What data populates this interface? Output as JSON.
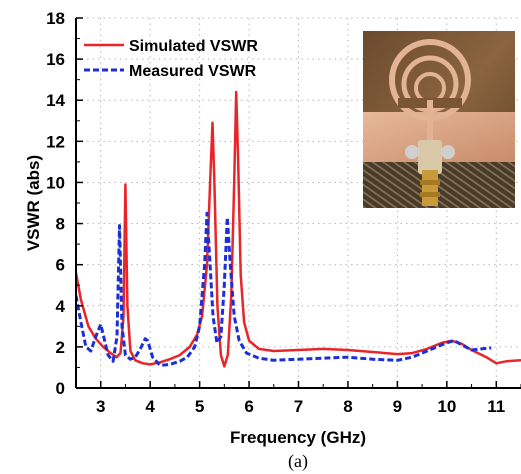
{
  "caption": "(a)",
  "chart_data": {
    "type": "line",
    "xlabel": "Frequency (GHz)",
    "ylabel": "VSWR (abs)",
    "xlim": [
      2.5,
      11.5
    ],
    "ylim": [
      0,
      18
    ],
    "x_ticks": [
      "3",
      "4",
      "5",
      "6",
      "7",
      "8",
      "9",
      "10",
      "11"
    ],
    "y_ticks": [
      "0",
      "2",
      "4",
      "6",
      "8",
      "10",
      "12",
      "14",
      "16",
      "18"
    ],
    "grid": "dotted",
    "legend_position": "top-left",
    "inset": "photograph of fabricated antenna prototype, top-right",
    "series": [
      {
        "name": "Simulated VSWR",
        "color": "#e8262a",
        "style": "solid",
        "points": [
          [
            2.5,
            5.6
          ],
          [
            2.6,
            4.3
          ],
          [
            2.75,
            3.0
          ],
          [
            2.9,
            2.4
          ],
          [
            3.05,
            2.0
          ],
          [
            3.2,
            1.7
          ],
          [
            3.32,
            1.5
          ],
          [
            3.4,
            1.7
          ],
          [
            3.46,
            3.5
          ],
          [
            3.5,
            9.9
          ],
          [
            3.54,
            4.0
          ],
          [
            3.6,
            1.8
          ],
          [
            3.7,
            1.35
          ],
          [
            3.85,
            1.2
          ],
          [
            4.0,
            1.15
          ],
          [
            4.2,
            1.25
          ],
          [
            4.4,
            1.4
          ],
          [
            4.6,
            1.6
          ],
          [
            4.8,
            2.0
          ],
          [
            4.95,
            2.6
          ],
          [
            5.05,
            3.5
          ],
          [
            5.15,
            6.0
          ],
          [
            5.22,
            10.5
          ],
          [
            5.26,
            12.9
          ],
          [
            5.3,
            10.0
          ],
          [
            5.36,
            4.0
          ],
          [
            5.43,
            1.6
          ],
          [
            5.5,
            1.05
          ],
          [
            5.57,
            1.6
          ],
          [
            5.64,
            4.5
          ],
          [
            5.7,
            10.0
          ],
          [
            5.74,
            14.4
          ],
          [
            5.78,
            11.0
          ],
          [
            5.83,
            5.5
          ],
          [
            5.9,
            3.2
          ],
          [
            6.0,
            2.3
          ],
          [
            6.2,
            1.9
          ],
          [
            6.5,
            1.8
          ],
          [
            7.0,
            1.85
          ],
          [
            7.5,
            1.9
          ],
          [
            8.0,
            1.85
          ],
          [
            8.5,
            1.75
          ],
          [
            9.0,
            1.65
          ],
          [
            9.3,
            1.7
          ],
          [
            9.6,
            1.9
          ],
          [
            9.9,
            2.2
          ],
          [
            10.1,
            2.3
          ],
          [
            10.3,
            2.15
          ],
          [
            10.5,
            1.85
          ],
          [
            10.8,
            1.5
          ],
          [
            11.0,
            1.2
          ],
          [
            11.2,
            1.3
          ],
          [
            11.5,
            1.35
          ]
        ]
      },
      {
        "name": "Measured VSWR",
        "color": "#1a2fd6",
        "style": "dashed",
        "points": [
          [
            2.5,
            4.5
          ],
          [
            2.6,
            3.2
          ],
          [
            2.7,
            2.0
          ],
          [
            2.8,
            1.8
          ],
          [
            2.9,
            2.5
          ],
          [
            3.0,
            3.1
          ],
          [
            3.05,
            2.6
          ],
          [
            3.15,
            1.6
          ],
          [
            3.25,
            1.3
          ],
          [
            3.33,
            2.5
          ],
          [
            3.38,
            7.9
          ],
          [
            3.43,
            3.0
          ],
          [
            3.5,
            1.6
          ],
          [
            3.6,
            1.4
          ],
          [
            3.7,
            1.5
          ],
          [
            3.8,
            1.9
          ],
          [
            3.9,
            2.4
          ],
          [
            3.95,
            2.3
          ],
          [
            4.05,
            1.5
          ],
          [
            4.2,
            1.1
          ],
          [
            4.4,
            1.15
          ],
          [
            4.6,
            1.3
          ],
          [
            4.75,
            1.5
          ],
          [
            4.9,
            2.0
          ],
          [
            5.0,
            3.0
          ],
          [
            5.1,
            6.0
          ],
          [
            5.15,
            8.5
          ],
          [
            5.2,
            6.5
          ],
          [
            5.27,
            3.5
          ],
          [
            5.35,
            2.2
          ],
          [
            5.43,
            2.5
          ],
          [
            5.5,
            5.0
          ],
          [
            5.56,
            8.3
          ],
          [
            5.62,
            6.0
          ],
          [
            5.7,
            3.5
          ],
          [
            5.8,
            2.3
          ],
          [
            5.95,
            1.7
          ],
          [
            6.2,
            1.45
          ],
          [
            6.5,
            1.35
          ],
          [
            7.0,
            1.4
          ],
          [
            7.5,
            1.45
          ],
          [
            8.0,
            1.5
          ],
          [
            8.5,
            1.4
          ],
          [
            9.0,
            1.35
          ],
          [
            9.3,
            1.5
          ],
          [
            9.6,
            1.8
          ],
          [
            9.8,
            2.0
          ],
          [
            10.0,
            2.2
          ],
          [
            10.15,
            2.3
          ],
          [
            10.3,
            2.1
          ],
          [
            10.5,
            1.85
          ],
          [
            10.7,
            1.9
          ],
          [
            10.9,
            1.95
          ]
        ]
      }
    ]
  }
}
